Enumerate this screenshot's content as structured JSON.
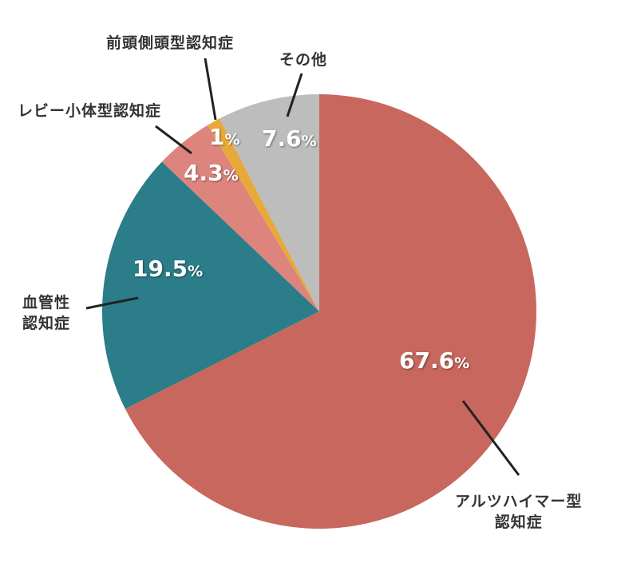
{
  "chart_data": {
    "type": "pie",
    "title": "",
    "categories": [
      "アルツハイマー型認知症",
      "血管性認知症",
      "レビー小体型認知症",
      "前頭側頭型認知症",
      "その他"
    ],
    "values": [
      67.6,
      19.5,
      4.3,
      1.0,
      7.6
    ],
    "unit": "%",
    "colors": [
      "#c8675d",
      "#2a7d89",
      "#dd847d",
      "#e6a93a",
      "#bcbdbc"
    ],
    "start_angle": "12 o'clock, clockwise"
  },
  "labels": {
    "alz": {
      "line1": "アルツハイマー型",
      "line2": "認知症",
      "pct": "67.6",
      "unit": "%"
    },
    "vas": {
      "line1": "血管性",
      "line2": "認知症",
      "pct": "19.5",
      "unit": "%"
    },
    "lewy": {
      "line1": "レビー小体型認知症",
      "pct": "4.3",
      "unit": "%"
    },
    "ftd": {
      "line1": "前頭側頭型認知症",
      "pct": "1",
      "unit": "%"
    },
    "other": {
      "line1": "その他",
      "pct": "7.6",
      "unit": "%"
    }
  }
}
